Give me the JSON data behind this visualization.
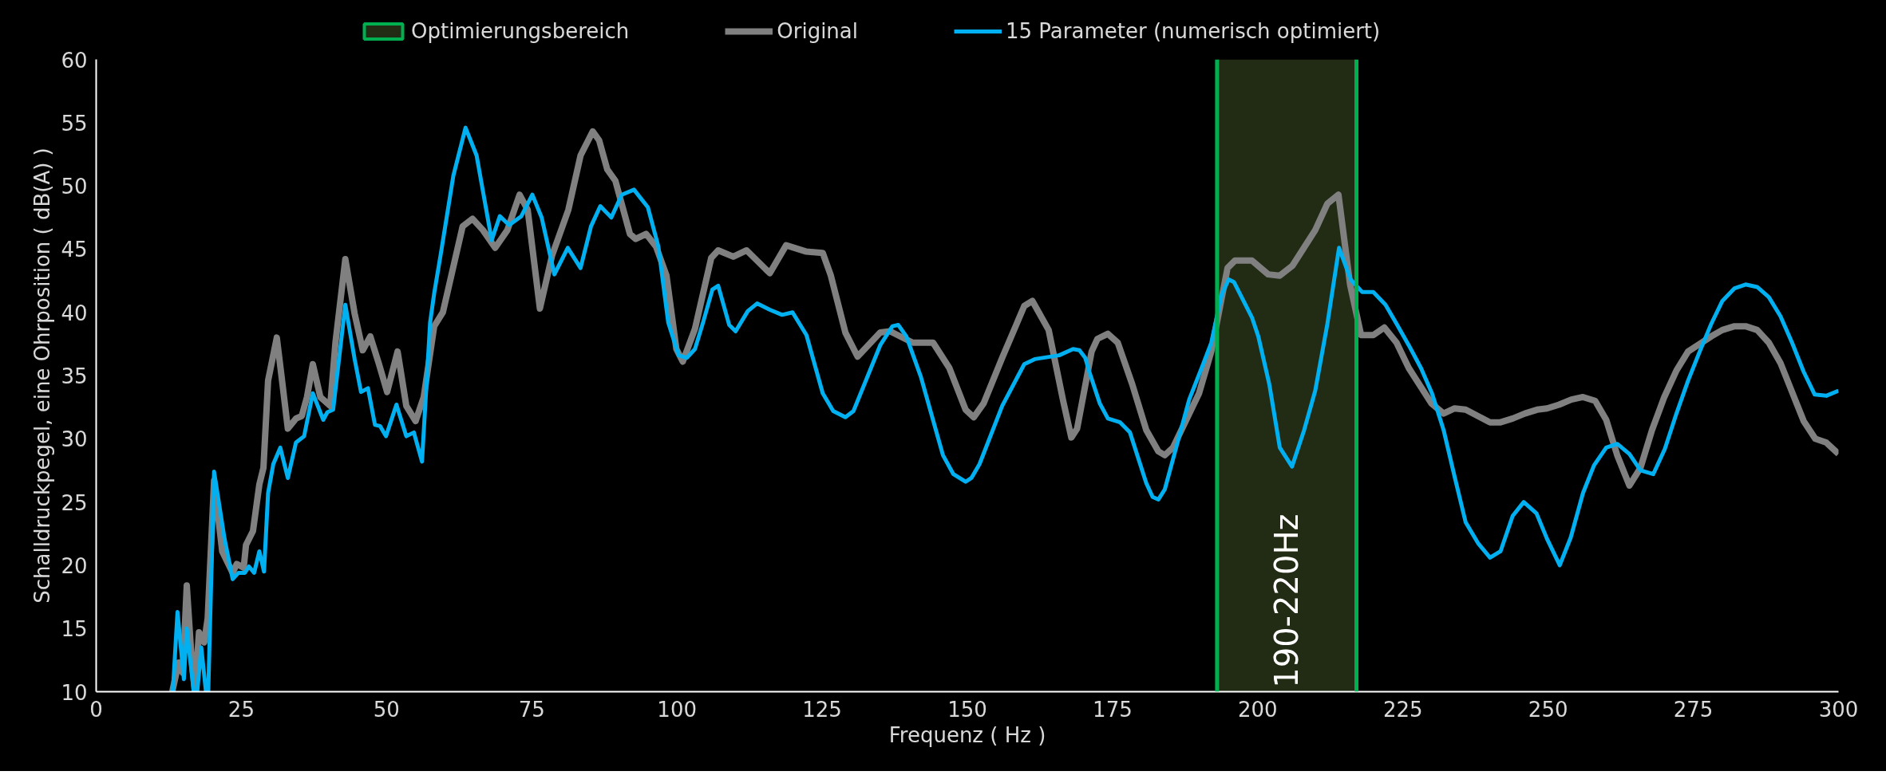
{
  "chart_data": {
    "type": "line",
    "xlabel": "Frequenz ( Hz )",
    "ylabel": "Schalldruckpegel, eine Ohrposition ( dB(A) )",
    "xlim": [
      0,
      300
    ],
    "ylim": [
      10,
      60
    ],
    "xticks": [
      0,
      25,
      50,
      75,
      100,
      125,
      150,
      175,
      200,
      225,
      250,
      275,
      300
    ],
    "yticks": [
      10,
      15,
      20,
      25,
      30,
      35,
      40,
      45,
      50,
      55,
      60
    ],
    "grid": false,
    "legend": "top",
    "marker": "none",
    "line_style": "solid",
    "bands": [
      {
        "axis": "x",
        "from": 193,
        "to": 217,
        "label": "Optimierungsbereich",
        "color": "#222c14"
      }
    ],
    "ref_lines": [
      {
        "axis": "x",
        "value": 193,
        "color": "#00b050"
      },
      {
        "axis": "x",
        "value": 217,
        "color": "#00b050"
      }
    ],
    "annotations": [
      {
        "text": "190-220Hz",
        "x": 205,
        "y": 10.3
      }
    ],
    "series": [
      {
        "name": "Original",
        "color": "#808080",
        "x": [
          13.1,
          14.2,
          14.9,
          15.6,
          16.4,
          17,
          17.7,
          18.6,
          19.2,
          20.3,
          21.7,
          23.5,
          24.2,
          25.4,
          25.8,
          27,
          28.1,
          28.8,
          29.6,
          31.1,
          31.9,
          33,
          34.4,
          35.4,
          36.3,
          37.3,
          38.6,
          40.3,
          41.2,
          42.9,
          44.5,
          45.9,
          47.2,
          48.7,
          50.1,
          51.9,
          53.4,
          55,
          56.4,
          58.2,
          59.7,
          61.3,
          63.1,
          64.8,
          66.6,
          68.7,
          70.8,
          72.9,
          74.3,
          76.4,
          78.5,
          81.3,
          83.4,
          85.5,
          86.6,
          88,
          89.4,
          91.9,
          92.9,
          94.7,
          96.4,
          98.2,
          99.9,
          101,
          103.1,
          105.9,
          107.1,
          109.7,
          112,
          115.3,
          116,
          118.8,
          122.3,
          125.1,
          126.5,
          129,
          131.1,
          135,
          136.7,
          140.6,
          144.1,
          146.9,
          149.7,
          151.1,
          152.8,
          156,
          159.8,
          161.2,
          164,
          166.5,
          167.9,
          168.9,
          171.4,
          172.4,
          174.2,
          175.9,
          178.4,
          180.8,
          182.9,
          184,
          185.4,
          189.9,
          192,
          194.8,
          196.1,
          199,
          201.8,
          203.8,
          206,
          209.9,
          212,
          213.9,
          215.9,
          217.8,
          219.9,
          221.8,
          223.9,
          226,
          229.9,
          232,
          233.9,
          235.8,
          240,
          241.8,
          243.9,
          246,
          248.1,
          249.8,
          251.9,
          254,
          256,
          258.1,
          260,
          261.9,
          264,
          265.9,
          267.9,
          270,
          272.1,
          274.1,
          278.1,
          280,
          282.1,
          284,
          286,
          288,
          290,
          292,
          294,
          296,
          297.9,
          300
        ],
        "values": [
          10,
          12.3,
          11.5,
          18.4,
          12.8,
          10,
          14.7,
          13.9,
          15.8,
          26.7,
          21.1,
          19.4,
          20.1,
          19.8,
          21.6,
          22.7,
          26.4,
          27.7,
          34.6,
          38,
          35,
          30.8,
          31.6,
          31.8,
          33.3,
          35.9,
          33.3,
          32.6,
          37.6,
          44.2,
          39.9,
          37,
          38.1,
          35.9,
          33.7,
          36.9,
          32.6,
          31.4,
          33.3,
          38.9,
          40,
          43.2,
          46.8,
          47.4,
          46.5,
          45.1,
          46.5,
          49.3,
          48.1,
          40.3,
          44.5,
          48.1,
          52.4,
          54.3,
          53.6,
          51.3,
          50.4,
          46.2,
          45.8,
          46.2,
          45.2,
          42.9,
          37.1,
          36.1,
          38.7,
          44.3,
          44.9,
          44.4,
          44.9,
          43.4,
          43.1,
          45.3,
          44.8,
          44.7,
          42.9,
          38.4,
          36.5,
          38.4,
          38.5,
          37.6,
          37.6,
          35.6,
          32.3,
          31.7,
          32.8,
          36.4,
          40.5,
          40.9,
          38.6,
          33,
          30.1,
          30.8,
          36.9,
          37.9,
          38.3,
          37.6,
          34.3,
          30.7,
          29,
          28.7,
          29.3,
          33.6,
          36.9,
          43.5,
          44.1,
          44.1,
          43,
          42.9,
          43.7,
          46.5,
          48.6,
          49.3,
          42.2,
          38.2,
          38.2,
          38.8,
          37.6,
          35.6,
          32.8,
          32,
          32.4,
          32.3,
          31.3,
          31.3,
          31.6,
          32,
          32.3,
          32.4,
          32.7,
          33.1,
          33.3,
          33,
          31.5,
          28.7,
          26.3,
          27.7,
          30.7,
          33.3,
          35.4,
          36.9,
          38.1,
          38.6,
          38.9,
          38.9,
          38.6,
          37.6,
          36,
          33.7,
          31.4,
          30,
          29.7,
          28.8
        ]
      },
      {
        "name": "15 Parameter (numerisch optimiert)",
        "color": "#00b0f0",
        "x": [
          13.2,
          14,
          15.1,
          15.6,
          16.8,
          17.4,
          18.1,
          18.9,
          19.3,
          20.3,
          22.1,
          23.5,
          24.5,
          25.6,
          26.3,
          27.2,
          28.1,
          28.9,
          29.6,
          30.5,
          31.7,
          33,
          34.4,
          35.8,
          37.3,
          39.1,
          39.8,
          40.8,
          42.9,
          44.5,
          45.6,
          46.8,
          48,
          48.9,
          49.9,
          51.7,
          53.4,
          54.7,
          56.1,
          57.5,
          58.2,
          59.4,
          61.5,
          63.6,
          65.5,
          68.1,
          69.5,
          71.1,
          73.2,
          75.1,
          76.7,
          78.9,
          81.2,
          83.4,
          85.2,
          86.8,
          88.7,
          90.5,
          92.6,
          95,
          96.8,
          98.5,
          100.3,
          101.7,
          103.1,
          104.5,
          106.1,
          107.1,
          109,
          110.1,
          112.2,
          113.8,
          116,
          118.1,
          119.9,
          122.3,
          125.1,
          126.9,
          129,
          130.4,
          135,
          137.1,
          138.1,
          139.5,
          142,
          145.8,
          147.6,
          149.7,
          150.7,
          152.1,
          156,
          159.8,
          161.6,
          165.8,
          168.2,
          169.3,
          170.3,
          171,
          172.8,
          174.2,
          176.3,
          178,
          180.8,
          181.9,
          182.9,
          184,
          188.2,
          190.6,
          192,
          193.8,
          195,
          195.9,
          199,
          200.1,
          202,
          203.8,
          205.9,
          208,
          209.9,
          212,
          214,
          216,
          218,
          219.9,
          222,
          223.9,
          226,
          228.1,
          230,
          232,
          233.9,
          235.8,
          238,
          240,
          241.8,
          243.9,
          245.8,
          248,
          249.8,
          252,
          253.9,
          256,
          257.9,
          260,
          261.9,
          264,
          265.9,
          268.1,
          270.1,
          272.1,
          274.1,
          276.1,
          278.1,
          280,
          282.1,
          284,
          286,
          288,
          290,
          292,
          294,
          295.9,
          297.9,
          300
        ],
        "values": [
          10,
          16.3,
          11,
          15,
          10,
          10,
          13.5,
          10,
          10,
          27.4,
          22.1,
          18.9,
          19.4,
          19.4,
          19.9,
          19.4,
          21.1,
          19.5,
          25.7,
          28,
          29.3,
          26.9,
          29.7,
          30.2,
          33.6,
          31.5,
          32.1,
          32.3,
          40.6,
          36.3,
          33.7,
          34,
          31.1,
          31,
          30.2,
          32.7,
          30.2,
          30.5,
          28.2,
          39.2,
          41.5,
          44.8,
          50.8,
          54.6,
          52.4,
          45.7,
          47.6,
          46.9,
          47.6,
          49.3,
          47.5,
          43,
          45.1,
          43.5,
          46.8,
          48.4,
          47.5,
          49.3,
          49.7,
          48.3,
          45.2,
          39.2,
          36.6,
          36.4,
          37.1,
          39.2,
          41.8,
          42.1,
          39,
          38.5,
          40.1,
          40.7,
          40.2,
          39.8,
          40,
          38.2,
          33.6,
          32.2,
          31.7,
          32.2,
          37.4,
          38.9,
          39,
          38.1,
          34.9,
          28.7,
          27.2,
          26.6,
          26.9,
          28,
          32.6,
          35.9,
          36.3,
          36.6,
          37.1,
          37,
          36.4,
          35.3,
          32.8,
          31.6,
          31.3,
          30.5,
          26.5,
          25.4,
          25.2,
          26,
          33.1,
          35.9,
          37.6,
          41.4,
          42.6,
          42.4,
          39.6,
          38.1,
          34.3,
          29.3,
          27.8,
          30.7,
          33.8,
          39.1,
          45.1,
          42.6,
          41.6,
          41.6,
          40.6,
          39.1,
          37.4,
          35.6,
          33.6,
          30.7,
          27,
          23.4,
          21.7,
          20.6,
          21.1,
          23.9,
          25,
          24.1,
          22.1,
          20,
          22.2,
          25.7,
          27.9,
          29.3,
          29.6,
          28.8,
          27.5,
          27.2,
          29.2,
          32,
          34.6,
          36.9,
          39.1,
          40.9,
          41.9,
          42.2,
          42,
          41.2,
          39.7,
          37.6,
          35.3,
          33.5,
          33.4,
          33.8
        ]
      }
    ]
  }
}
